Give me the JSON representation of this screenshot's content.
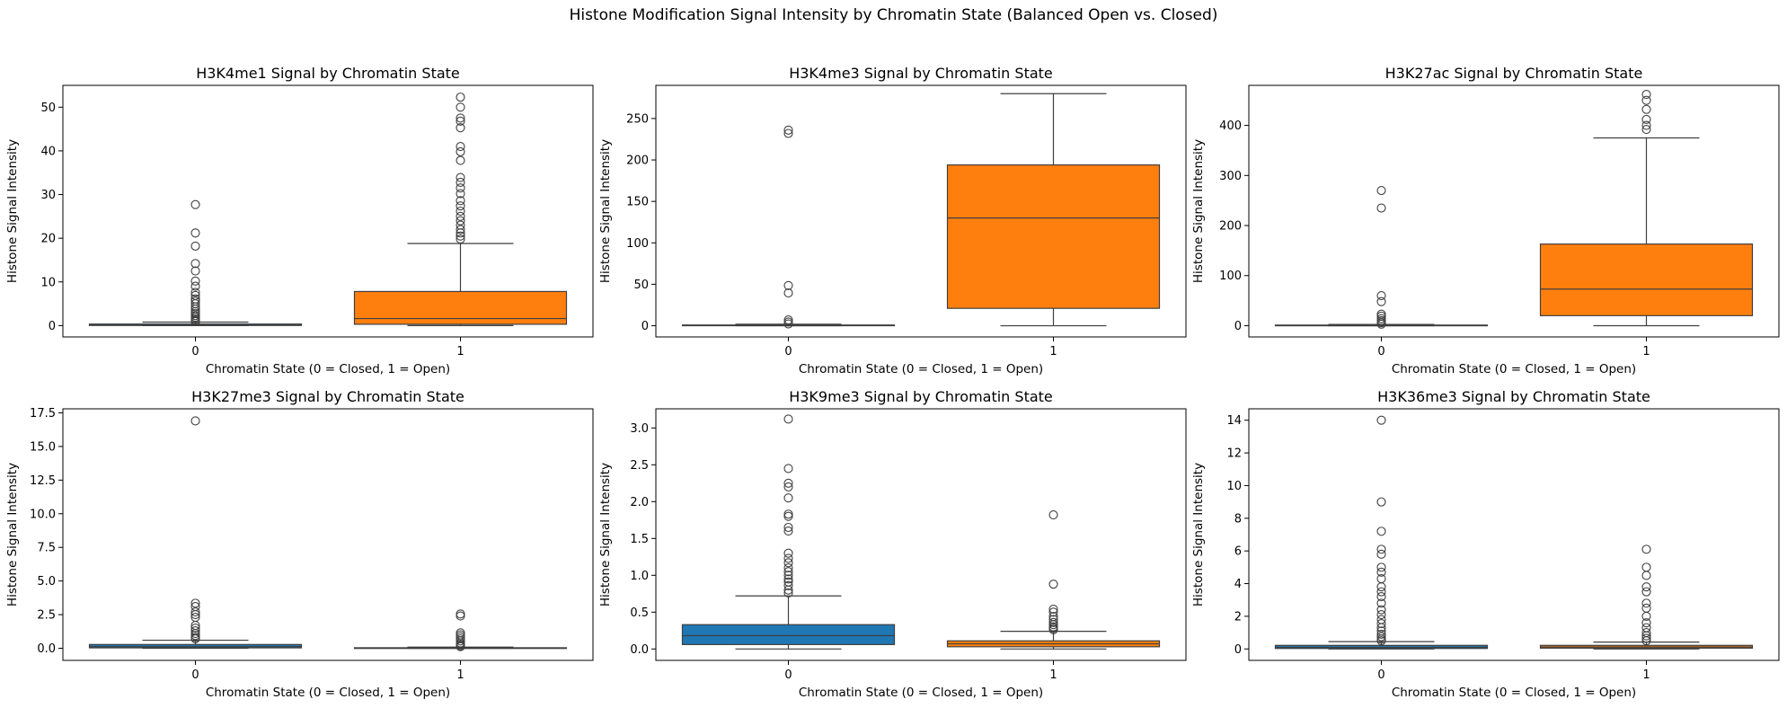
{
  "figure": {
    "title": "Histone Modification Signal Intensity by Chromatin State (Balanced Open vs. Closed)"
  },
  "chart_data": [
    {
      "type": "box",
      "title": "H3K4me1 Signal by Chromatin State",
      "xlabel": "Chromatin State (0 = Closed, 1 = Open)",
      "ylabel": "Histone Signal Intensity",
      "categories": [
        "0",
        "1"
      ],
      "colors": [
        "#1f77b4",
        "#ff7f0e"
      ],
      "ylim": [
        -2.6,
        55
      ],
      "yticks": [
        0,
        10,
        20,
        30,
        40,
        50
      ],
      "ytick_labels": [
        "0",
        "10",
        "20",
        "30",
        "40",
        "50"
      ],
      "boxes": [
        {
          "category": "0",
          "whisker_low": 0,
          "q1": 0.02,
          "median": 0.1,
          "q3": 0.35,
          "whisker_high": 0.8,
          "outliers": [
            0.9,
            1.2,
            1.5,
            1.9,
            2.3,
            2.8,
            3.2,
            3.8,
            4.3,
            5.0,
            5.6,
            6.1,
            6.9,
            7.6,
            9.0,
            10.2,
            12.5,
            14.2,
            18.2,
            21.2,
            27.7
          ]
        },
        {
          "category": "1",
          "whisker_low": 0,
          "q1": 0.3,
          "median": 1.6,
          "q3": 7.8,
          "whisker_high": 18.8,
          "outliers": [
            19.8,
            20.5,
            21.2,
            22.0,
            23.0,
            24.0,
            25.0,
            26.2,
            27.4,
            28.6,
            30.2,
            31.5,
            32.8,
            33.9,
            37.8,
            39.8,
            41.0,
            45.3,
            46.8,
            47.5,
            50.0,
            52.3
          ]
        }
      ]
    },
    {
      "type": "box",
      "title": "H3K4me3 Signal by Chromatin State",
      "xlabel": "Chromatin State (0 = Closed, 1 = Open)",
      "ylabel": "Histone Signal Intensity",
      "categories": [
        "0",
        "1"
      ],
      "colors": [
        "#1f77b4",
        "#ff7f0e"
      ],
      "ylim": [
        -13.5,
        290
      ],
      "yticks": [
        0,
        50,
        100,
        150,
        200,
        250
      ],
      "ytick_labels": [
        "0",
        "50",
        "100",
        "150",
        "200",
        "250"
      ],
      "boxes": [
        {
          "category": "0",
          "whisker_low": 0,
          "q1": 0.1,
          "median": 0.3,
          "q3": 0.9,
          "whisker_high": 1.8,
          "outliers": [
            2.2,
            4.5,
            7.0,
            39.5,
            48.5,
            232,
            236
          ]
        },
        {
          "category": "1",
          "whisker_low": 0,
          "q1": 21,
          "median": 130,
          "q3": 194,
          "whisker_high": 280,
          "outliers": []
        }
      ]
    },
    {
      "type": "box",
      "title": "H3K27ac Signal by Chromatin State",
      "xlabel": "Chromatin State (0 = Closed, 1 = Open)",
      "ylabel": "Histone Signal Intensity",
      "categories": [
        "0",
        "1"
      ],
      "colors": [
        "#1f77b4",
        "#ff7f0e"
      ],
      "ylim": [
        -22.5,
        480
      ],
      "yticks": [
        0,
        100,
        200,
        300,
        400
      ],
      "ytick_labels": [
        "0",
        "100",
        "200",
        "300",
        "400"
      ],
      "boxes": [
        {
          "category": "0",
          "whisker_low": 0,
          "q1": 0.1,
          "median": 0.4,
          "q3": 1.2,
          "whisker_high": 2.5,
          "outliers": [
            3,
            6,
            10,
            14,
            19,
            23,
            48,
            60,
            235,
            270
          ]
        },
        {
          "category": "1",
          "whisker_low": 0,
          "q1": 20,
          "median": 73,
          "q3": 163,
          "whisker_high": 375,
          "outliers": [
            392,
            400,
            412,
            432,
            450,
            462
          ]
        }
      ]
    },
    {
      "type": "box",
      "title": "H3K27me3 Signal by Chromatin State",
      "xlabel": "Chromatin State (0 = Closed, 1 = Open)",
      "ylabel": "Histone Signal Intensity",
      "categories": [
        "0",
        "1"
      ],
      "colors": [
        "#1f77b4",
        "#ff7f0e"
      ],
      "ylim": [
        -0.9,
        17.8
      ],
      "yticks": [
        0,
        2.5,
        5,
        7.5,
        10,
        12.5,
        15,
        17.5
      ],
      "ytick_labels": [
        "0.0",
        "2.5",
        "5.0",
        "7.5",
        "10.0",
        "12.5",
        "15.0",
        "17.5"
      ],
      "boxes": [
        {
          "category": "0",
          "whisker_low": 0,
          "q1": 0.03,
          "median": 0.12,
          "q3": 0.28,
          "whisker_high": 0.6,
          "outliers": [
            0.7,
            0.8,
            0.95,
            1.1,
            1.3,
            1.5,
            1.7,
            2.3,
            2.5,
            2.7,
            3.1,
            3.35,
            16.9
          ]
        },
        {
          "category": "1",
          "whisker_low": 0,
          "q1": 0.0,
          "median": 0.01,
          "q3": 0.04,
          "whisker_high": 0.09,
          "outliers": [
            0.12,
            0.2,
            0.3,
            0.4,
            0.55,
            0.7,
            0.85,
            1.0,
            1.15,
            2.4,
            2.55
          ]
        }
      ]
    },
    {
      "type": "box",
      "title": "H3K9me3 Signal by Chromatin State",
      "xlabel": "Chromatin State (0 = Closed, 1 = Open)",
      "ylabel": "Histone Signal Intensity",
      "categories": [
        "0",
        "1"
      ],
      "colors": [
        "#1f77b4",
        "#ff7f0e"
      ],
      "ylim": [
        -0.155,
        3.26
      ],
      "yticks": [
        0,
        0.5,
        1,
        1.5,
        2,
        2.5,
        3
      ],
      "ytick_labels": [
        "0.0",
        "0.5",
        "1.0",
        "1.5",
        "2.0",
        "2.5",
        "3.0"
      ],
      "boxes": [
        {
          "category": "0",
          "whisker_low": 0.0,
          "q1": 0.06,
          "median": 0.18,
          "q3": 0.33,
          "whisker_high": 0.72,
          "outliers": [
            0.76,
            0.8,
            0.86,
            0.91,
            0.95,
            1.0,
            1.05,
            1.1,
            1.17,
            1.23,
            1.3,
            1.6,
            1.65,
            1.8,
            1.83,
            2.05,
            2.2,
            2.25,
            2.45,
            3.12
          ]
        },
        {
          "category": "1",
          "whisker_low": 0.0,
          "q1": 0.03,
          "median": 0.07,
          "q3": 0.11,
          "whisker_high": 0.24,
          "outliers": [
            0.26,
            0.28,
            0.3,
            0.33,
            0.36,
            0.4,
            0.44,
            0.5,
            0.54,
            0.88,
            1.82
          ]
        }
      ]
    },
    {
      "type": "box",
      "title": "H3K36me3 Signal by Chromatin State",
      "xlabel": "Chromatin State (0 = Closed, 1 = Open)",
      "ylabel": "Histone Signal Intensity",
      "categories": [
        "0",
        "1"
      ],
      "colors": [
        "#1f77b4",
        "#ff7f0e"
      ],
      "ylim": [
        -0.7,
        14.7
      ],
      "yticks": [
        0,
        2,
        4,
        6,
        8,
        10,
        12,
        14
      ],
      "ytick_labels": [
        "0",
        "2",
        "4",
        "6",
        "8",
        "10",
        "12",
        "14"
      ],
      "boxes": [
        {
          "category": "0",
          "whisker_low": 0.0,
          "q1": 0.03,
          "median": 0.1,
          "q3": 0.22,
          "whisker_high": 0.45,
          "outliers": [
            0.5,
            0.6,
            0.75,
            0.9,
            1.1,
            1.3,
            1.55,
            1.8,
            2.1,
            2.4,
            2.8,
            3.2,
            3.5,
            3.8,
            4.3,
            4.7,
            5.0,
            5.8,
            6.1,
            7.2,
            9.0,
            14.0
          ]
        },
        {
          "category": "1",
          "whisker_low": 0.0,
          "q1": 0.05,
          "median": 0.12,
          "q3": 0.22,
          "whisker_high": 0.42,
          "outliers": [
            0.5,
            0.65,
            0.8,
            1.0,
            1.3,
            1.6,
            2.0,
            2.5,
            2.8,
            3.5,
            3.8,
            4.5,
            5.0,
            6.1
          ]
        }
      ]
    }
  ]
}
